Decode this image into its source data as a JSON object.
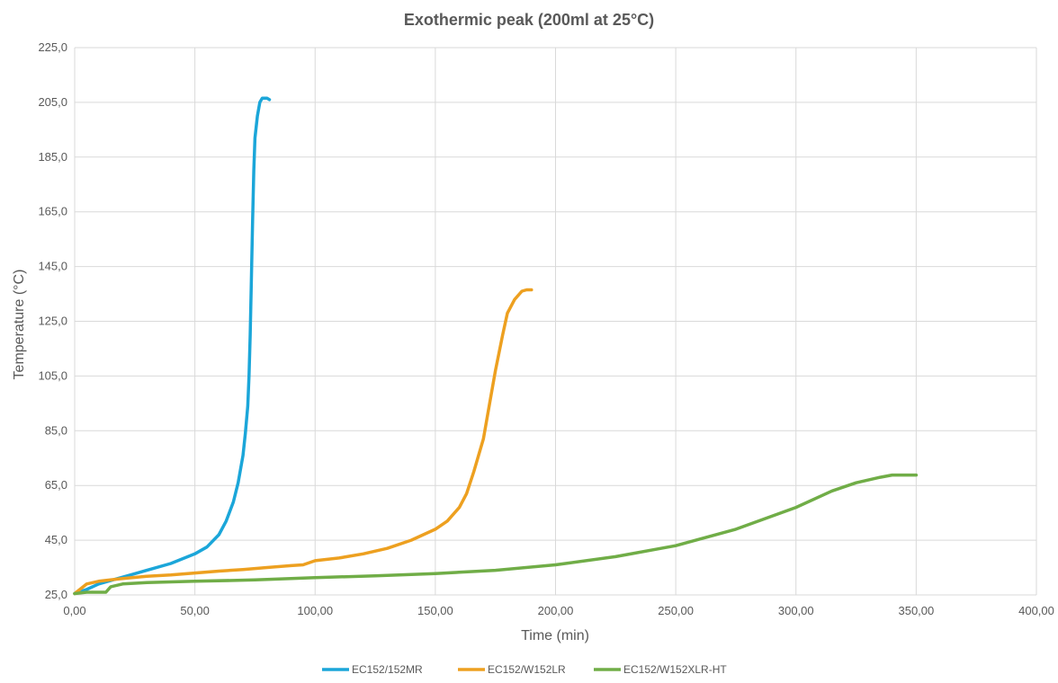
{
  "chart_data": {
    "type": "line",
    "title": "Exothermic peak (200ml at 25°C)",
    "xlabel": "Time (min)",
    "ylabel": "Temperature (°C)",
    "xlim": [
      0,
      400
    ],
    "ylim": [
      25,
      225
    ],
    "x_ticks": [
      "0,00",
      "50,00",
      "100,00",
      "150,00",
      "200,00",
      "250,00",
      "300,00",
      "350,00",
      "400,00"
    ],
    "y_ticks": [
      "25,0",
      "45,0",
      "65,0",
      "85,0",
      "105,0",
      "125,0",
      "145,0",
      "165,0",
      "185,0",
      "205,0",
      "225,0"
    ],
    "grid": true,
    "legend_position": "bottom",
    "series": [
      {
        "name": "EC152/152MR",
        "color": "#1ba6d9",
        "points": [
          [
            0,
            25.5
          ],
          [
            5,
            27
          ],
          [
            10,
            29
          ],
          [
            20,
            31.5
          ],
          [
            30,
            34
          ],
          [
            40,
            36.5
          ],
          [
            50,
            40
          ],
          [
            55,
            42.5
          ],
          [
            60,
            47
          ],
          [
            63,
            52
          ],
          [
            66,
            59
          ],
          [
            68,
            66
          ],
          [
            70,
            76
          ],
          [
            71,
            84
          ],
          [
            72,
            94
          ],
          [
            72.5,
            105
          ],
          [
            73,
            120
          ],
          [
            73.5,
            140
          ],
          [
            74,
            162
          ],
          [
            74.5,
            180
          ],
          [
            75,
            192
          ],
          [
            76,
            200
          ],
          [
            77,
            205
          ],
          [
            78,
            206.5
          ],
          [
            80,
            206.5
          ],
          [
            81,
            206
          ]
        ]
      },
      {
        "name": "EC152/W152LR",
        "color": "#eda020",
        "points": [
          [
            0,
            25.5
          ],
          [
            5,
            29
          ],
          [
            10,
            30
          ],
          [
            20,
            31
          ],
          [
            30,
            31.8
          ],
          [
            40,
            32.3
          ],
          [
            50,
            33
          ],
          [
            60,
            33.7
          ],
          [
            70,
            34.3
          ],
          [
            80,
            35
          ],
          [
            90,
            35.7
          ],
          [
            95,
            36
          ],
          [
            100,
            37.5
          ],
          [
            110,
            38.5
          ],
          [
            120,
            40
          ],
          [
            130,
            42
          ],
          [
            140,
            45
          ],
          [
            150,
            49
          ],
          [
            155,
            52
          ],
          [
            160,
            57
          ],
          [
            163,
            62
          ],
          [
            166,
            70
          ],
          [
            170,
            82
          ],
          [
            173,
            97
          ],
          [
            175,
            107
          ],
          [
            178,
            120
          ],
          [
            180,
            128
          ],
          [
            183,
            133
          ],
          [
            186,
            136
          ],
          [
            188,
            136.5
          ],
          [
            190,
            136.5
          ]
        ]
      },
      {
        "name": "EC152/W152XLR-HT",
        "color": "#70ad47",
        "points": [
          [
            0,
            25.5
          ],
          [
            5,
            26
          ],
          [
            10,
            26
          ],
          [
            13,
            26
          ],
          [
            15,
            28
          ],
          [
            20,
            29
          ],
          [
            30,
            29.5
          ],
          [
            50,
            30
          ],
          [
            75,
            30.5
          ],
          [
            100,
            31.3
          ],
          [
            125,
            32
          ],
          [
            150,
            32.8
          ],
          [
            175,
            34
          ],
          [
            200,
            36
          ],
          [
            225,
            39
          ],
          [
            250,
            43
          ],
          [
            275,
            49
          ],
          [
            300,
            57
          ],
          [
            315,
            63
          ],
          [
            325,
            66
          ],
          [
            335,
            68
          ],
          [
            340,
            68.8
          ],
          [
            350,
            68.8
          ]
        ]
      }
    ]
  }
}
